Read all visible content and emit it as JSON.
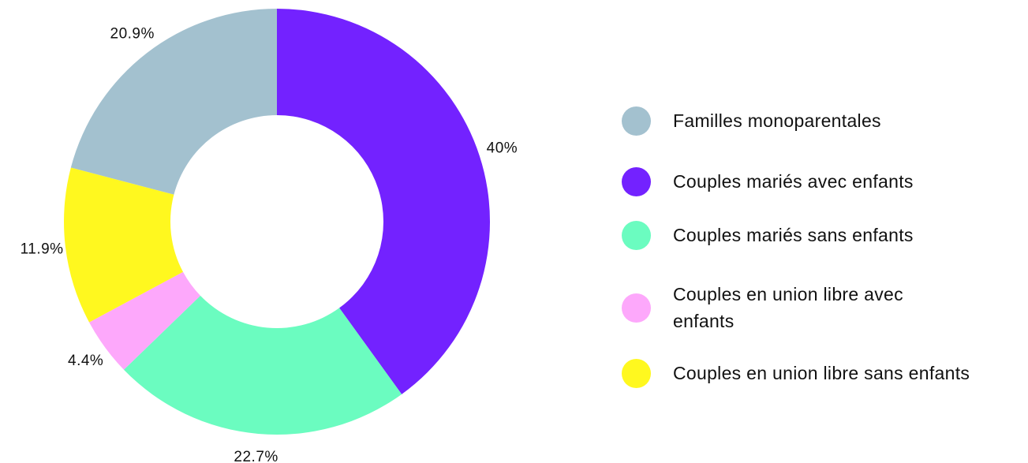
{
  "chart_data": {
    "type": "donut",
    "categories": [
      "Familles monoparentales",
      "Couples mariés avec enfants",
      "Couples mariés sans enfants",
      "Couples en union libre avec enfants",
      "Couples en union libre sans enfants"
    ],
    "values": [
      20.9,
      40,
      22.7,
      4.4,
      11.9
    ],
    "value_labels": [
      "20.9%",
      "40%",
      "22.7%",
      "4.4%",
      "11.9%"
    ],
    "colors": [
      "#a3c1cf",
      "#7322ff",
      "#6bfcc0",
      "#fda8fb",
      "#fff81f"
    ],
    "legend": "right"
  }
}
